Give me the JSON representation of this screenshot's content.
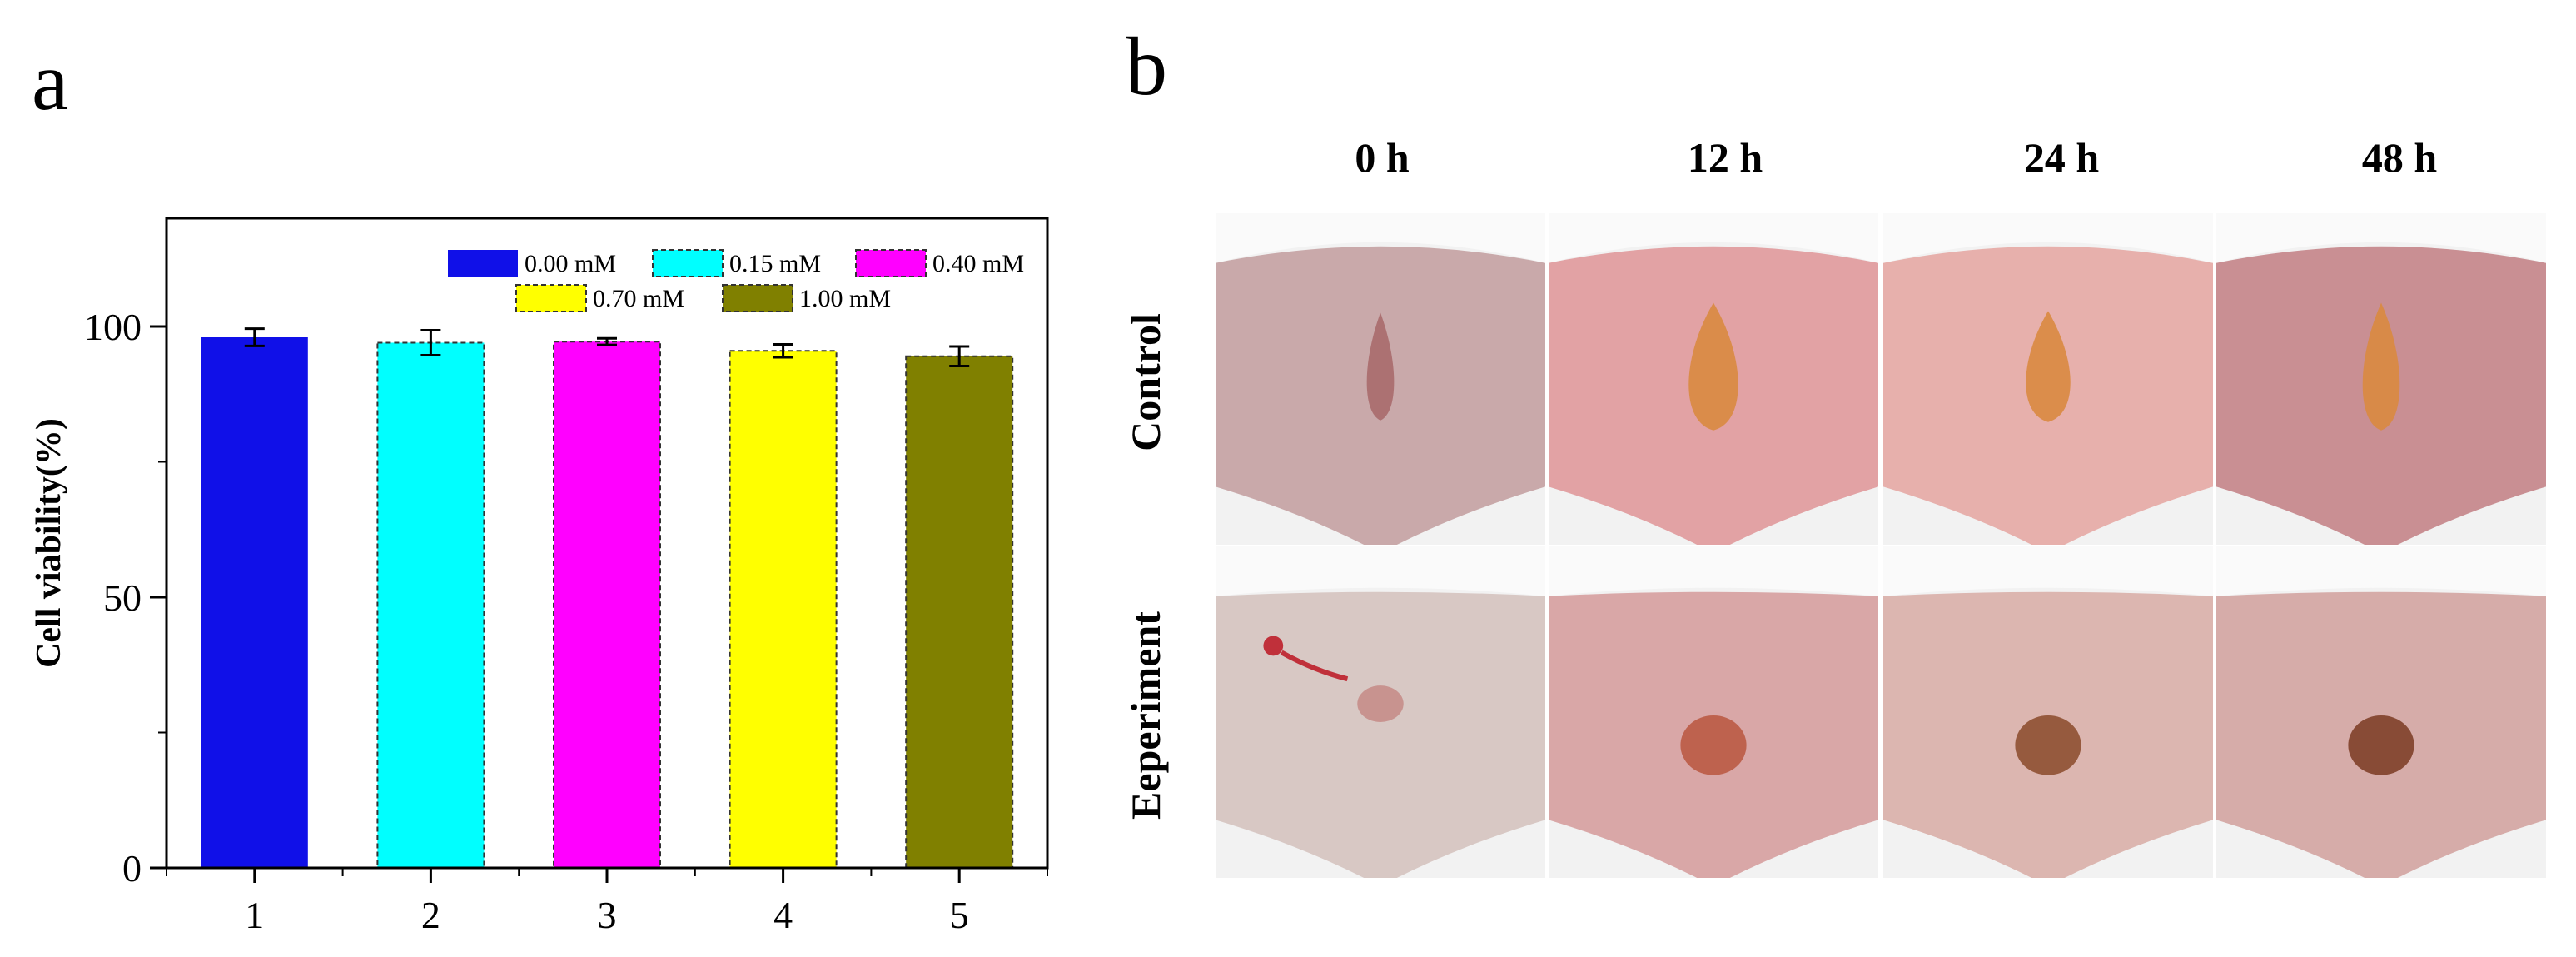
{
  "panels": {
    "a": {
      "letter": "a"
    },
    "b": {
      "letter": "b"
    }
  },
  "chart_data": {
    "type": "bar",
    "categories": [
      "1",
      "2",
      "3",
      "4",
      "5"
    ],
    "values": [
      98.0,
      97.0,
      97.2,
      95.5,
      94.5
    ],
    "errors": [
      1.6,
      2.3,
      0.6,
      1.2,
      1.8
    ],
    "series": [
      {
        "name": "0.00 mM",
        "values": [
          98.0,
          null,
          null,
          null,
          null
        ],
        "color": "#1010e8"
      },
      {
        "name": "0.15 mM",
        "values": [
          null,
          97.0,
          null,
          null,
          null
        ],
        "color": "#00ffff"
      },
      {
        "name": "0.40 mM",
        "values": [
          null,
          null,
          97.2,
          null,
          null
        ],
        "color": "#ff00ff"
      },
      {
        "name": "0.70 mM",
        "values": [
          null,
          null,
          null,
          95.5,
          null
        ],
        "color": "#ffff00"
      },
      {
        "name": "1.00 mM",
        "values": [
          null,
          null,
          null,
          null,
          94.5
        ],
        "color": "#808000"
      }
    ],
    "title": "",
    "xlabel": "",
    "ylabel": "Cell viability(%)",
    "ylim": [
      0,
      120
    ],
    "yticks": [
      0,
      50,
      100
    ],
    "grid": false,
    "legend_position": "top-right"
  },
  "photo_grid": {
    "columns": [
      "0 h",
      "12 h",
      "24 h",
      "48 h"
    ],
    "rows": [
      "Control",
      "Eeperiment"
    ]
  }
}
